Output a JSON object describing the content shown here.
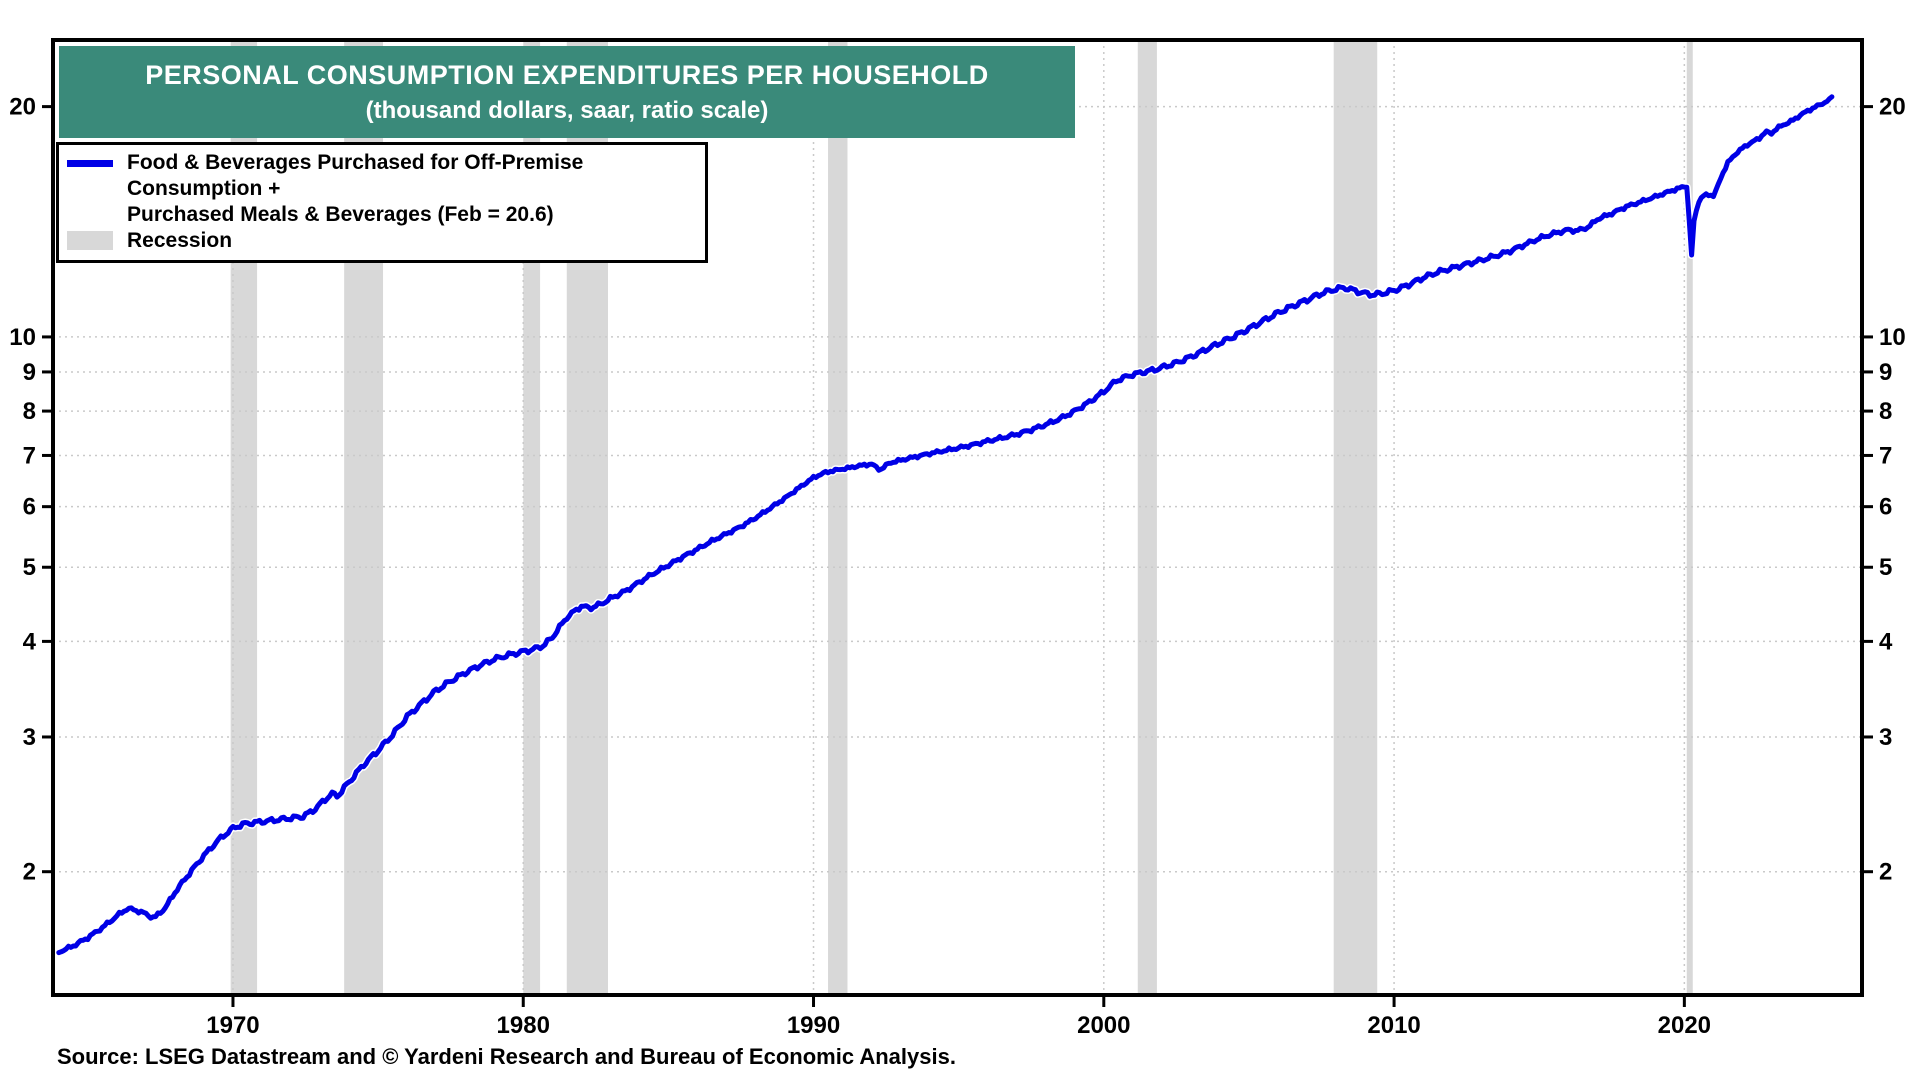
{
  "title": {
    "line1": "PERSONAL CONSUMPTION EXPENDITURES PER HOUSEHOLD",
    "line2": "(thousand dollars, saar, ratio scale)"
  },
  "legend": {
    "series_label_line1": "Food & Beverages Purchased for Off-Premise Consumption +",
    "series_label_line2": "Purchased Meals & Beverages (Feb = 20.6)",
    "recession_label": "Recession"
  },
  "source": "Source: LSEG Datastream and © Yardeni Research and Bureau of Economic Analysis.",
  "colors": {
    "title_background": "#3A8A7A",
    "title_text": "#ffffff",
    "series_line": "#0000E6",
    "recession_band": "#D8D8D8",
    "gridline": "#c9c9c9",
    "axis": "#000000"
  },
  "chart_data": {
    "type": "line",
    "title": "PERSONAL CONSUMPTION EXPENDITURES PER HOUSEHOLD",
    "subtitle": "(thousand dollars, saar, ratio scale)",
    "y_scale": "log",
    "grid": "dotted",
    "legend_position": "top-left",
    "xlim": [
      1963.8,
      2026.12
    ],
    "ylim": [
      1.38,
      24.44
    ],
    "x_ticks": [
      1970,
      1980,
      1990,
      2000,
      2010,
      2020
    ],
    "y_ticks": [
      2,
      3,
      4,
      5,
      6,
      7,
      8,
      9,
      10,
      20
    ],
    "last_point_label": "Feb = 20.6",
    "recessions": [
      [
        1969.92,
        1970.83
      ],
      [
        1973.83,
        1975.17
      ],
      [
        1980.0,
        1980.58
      ],
      [
        1981.5,
        1982.92
      ],
      [
        1990.5,
        1991.17
      ],
      [
        2001.17,
        2001.83
      ],
      [
        2007.92,
        2009.42
      ],
      [
        2020.083,
        2020.29
      ]
    ],
    "series": [
      {
        "name": "Food & Beverages Purchased for Off-Premise Consumption + Purchased Meals & Beverages",
        "units": "thousand dollars, saar",
        "points": [
          [
            1964,
            1.57
          ],
          [
            1964.5,
            1.6
          ],
          [
            1965,
            1.64
          ],
          [
            1965.5,
            1.69
          ],
          [
            1966,
            1.75
          ],
          [
            1966.35,
            1.79
          ],
          [
            1966.7,
            1.78
          ],
          [
            1967,
            1.76
          ],
          [
            1967.3,
            1.74
          ],
          [
            1967.7,
            1.8
          ],
          [
            1968,
            1.88
          ],
          [
            1968.5,
            1.99
          ],
          [
            1969,
            2.1
          ],
          [
            1969.5,
            2.2
          ],
          [
            1970,
            2.28
          ],
          [
            1970.4,
            2.31
          ],
          [
            1970.8,
            2.32
          ],
          [
            1971.2,
            2.33
          ],
          [
            1971.6,
            2.34
          ],
          [
            1972,
            2.35
          ],
          [
            1972.4,
            2.36
          ],
          [
            1972.8,
            2.41
          ],
          [
            1973,
            2.45
          ],
          [
            1973.4,
            2.53
          ],
          [
            1973.6,
            2.51
          ],
          [
            1974,
            2.62
          ],
          [
            1974.5,
            2.76
          ],
          [
            1975,
            2.88
          ],
          [
            1975.5,
            3.02
          ],
          [
            1976,
            3.19
          ],
          [
            1976.5,
            3.32
          ],
          [
            1977,
            3.45
          ],
          [
            1977.5,
            3.55
          ],
          [
            1978,
            3.64
          ],
          [
            1978.5,
            3.72
          ],
          [
            1979,
            3.79
          ],
          [
            1979.5,
            3.84
          ],
          [
            1980,
            3.88
          ],
          [
            1980.3,
            3.9
          ],
          [
            1980.7,
            3.95
          ],
          [
            1981,
            4.05
          ],
          [
            1981.5,
            4.3
          ],
          [
            1982,
            4.45
          ],
          [
            1982.3,
            4.42
          ],
          [
            1982.7,
            4.48
          ],
          [
            1983,
            4.55
          ],
          [
            1983.5,
            4.65
          ],
          [
            1984,
            4.78
          ],
          [
            1984.5,
            4.91
          ],
          [
            1985,
            5.03
          ],
          [
            1985.5,
            5.16
          ],
          [
            1986,
            5.28
          ],
          [
            1986.5,
            5.41
          ],
          [
            1987,
            5.53
          ],
          [
            1987.5,
            5.65
          ],
          [
            1988,
            5.8
          ],
          [
            1988.5,
            5.97
          ],
          [
            1989,
            6.15
          ],
          [
            1989.5,
            6.35
          ],
          [
            1990,
            6.55
          ],
          [
            1990.4,
            6.65
          ],
          [
            1990.8,
            6.7
          ],
          [
            1991.2,
            6.74
          ],
          [
            1991.6,
            6.79
          ],
          [
            1992,
            6.82
          ],
          [
            1992.3,
            6.7
          ],
          [
            1992.6,
            6.84
          ],
          [
            1993,
            6.9
          ],
          [
            1993.5,
            6.97
          ],
          [
            1994,
            7.04
          ],
          [
            1994.5,
            7.1
          ],
          [
            1995,
            7.16
          ],
          [
            1995.5,
            7.23
          ],
          [
            1996,
            7.31
          ],
          [
            1996.5,
            7.38
          ],
          [
            1997,
            7.46
          ],
          [
            1997.5,
            7.56
          ],
          [
            1998,
            7.68
          ],
          [
            1998.5,
            7.82
          ],
          [
            1999,
            8.0
          ],
          [
            1999.5,
            8.22
          ],
          [
            2000,
            8.48
          ],
          [
            2000.4,
            8.75
          ],
          [
            2000.7,
            8.85
          ],
          [
            2001,
            8.93
          ],
          [
            2001.4,
            9.0
          ],
          [
            2001.8,
            9.07
          ],
          [
            2002,
            9.12
          ],
          [
            2002.5,
            9.25
          ],
          [
            2003,
            9.42
          ],
          [
            2003.5,
            9.62
          ],
          [
            2004,
            9.82
          ],
          [
            2004.5,
            10.02
          ],
          [
            2005,
            10.25
          ],
          [
            2005.5,
            10.5
          ],
          [
            2006,
            10.75
          ],
          [
            2006.5,
            10.97
          ],
          [
            2007,
            11.18
          ],
          [
            2007.5,
            11.4
          ],
          [
            2008,
            11.55
          ],
          [
            2008.3,
            11.6
          ],
          [
            2008.7,
            11.48
          ],
          [
            2009,
            11.4
          ],
          [
            2009.3,
            11.35
          ],
          [
            2009.7,
            11.42
          ],
          [
            2010,
            11.5
          ],
          [
            2010.5,
            11.7
          ],
          [
            2011,
            11.95
          ],
          [
            2011.5,
            12.15
          ],
          [
            2012,
            12.3
          ],
          [
            2012.5,
            12.45
          ],
          [
            2013,
            12.6
          ],
          [
            2013.5,
            12.76
          ],
          [
            2014,
            12.95
          ],
          [
            2014.5,
            13.2
          ],
          [
            2015,
            13.45
          ],
          [
            2015.5,
            13.65
          ],
          [
            2016,
            13.8
          ],
          [
            2016.3,
            13.76
          ],
          [
            2016.7,
            13.92
          ],
          [
            2017,
            14.25
          ],
          [
            2017.5,
            14.5
          ],
          [
            2018,
            14.8
          ],
          [
            2018.5,
            15.02
          ],
          [
            2019,
            15.25
          ],
          [
            2019.5,
            15.5
          ],
          [
            2019.9,
            15.68
          ],
          [
            2020.083,
            15.75
          ],
          [
            2020.25,
            12.8
          ],
          [
            2020.33,
            14.1
          ],
          [
            2020.45,
            14.9
          ],
          [
            2020.6,
            15.25
          ],
          [
            2020.8,
            15.35
          ],
          [
            2021,
            15.3
          ],
          [
            2021.1,
            15.55
          ],
          [
            2021.3,
            16.3
          ],
          [
            2021.5,
            16.9
          ],
          [
            2021.8,
            17.4
          ],
          [
            2022,
            17.65
          ],
          [
            2022.3,
            17.95
          ],
          [
            2022.6,
            18.2
          ],
          [
            2022.8,
            18.55
          ],
          [
            2023,
            18.45
          ],
          [
            2023.2,
            18.75
          ],
          [
            2023.5,
            19.0
          ],
          [
            2023.8,
            19.25
          ],
          [
            2024,
            19.5
          ],
          [
            2024.3,
            19.8
          ],
          [
            2024.6,
            20.05
          ],
          [
            2024.9,
            20.3
          ],
          [
            2025.083,
            20.6
          ]
        ]
      }
    ]
  }
}
